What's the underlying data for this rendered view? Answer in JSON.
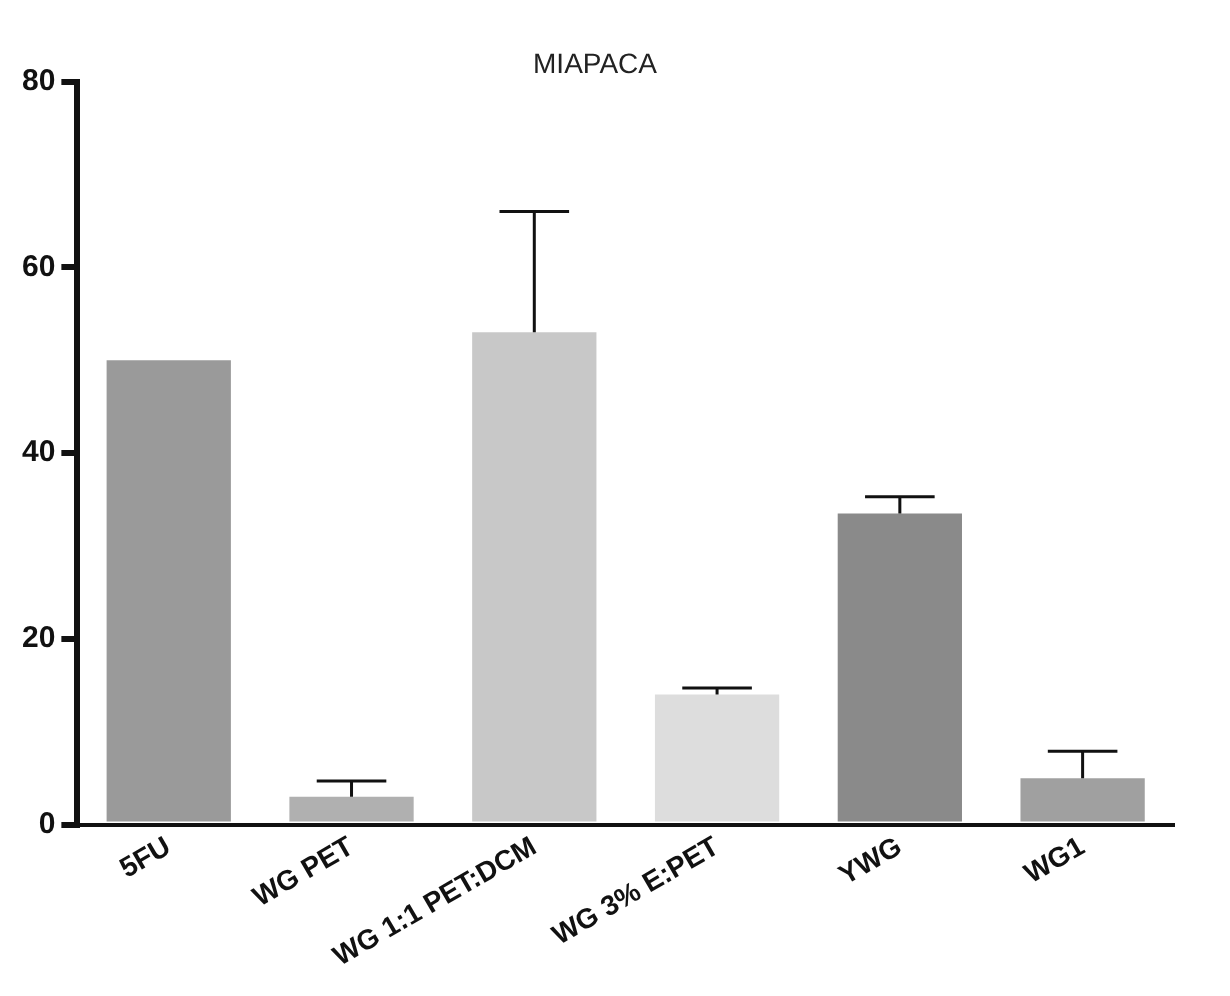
{
  "chart_data": {
    "type": "bar",
    "title": "MIAPACA",
    "categories": [
      "5FU",
      "WG PET",
      "WG 1:1 PET:DCM",
      "WG 3% E:PET",
      "YWG",
      "WG1"
    ],
    "values": [
      50,
      3,
      53,
      14,
      33.5,
      5
    ],
    "colors": [
      "#9a9a9a",
      "#b0b0b0",
      "#c8c8c8",
      "#dddddd",
      "#8a8a8a",
      "#a0a0a0"
    ],
    "errors": [
      null,
      [
        3,
        4.7
      ],
      [
        53,
        66
      ],
      [
        14,
        14.7
      ],
      [
        33.5,
        35.3
      ],
      [
        5,
        7.9
      ]
    ],
    "ylim": [
      0,
      80
    ],
    "yticks": [
      0,
      20,
      40,
      60,
      80
    ],
    "grid": false,
    "legend": false
  }
}
